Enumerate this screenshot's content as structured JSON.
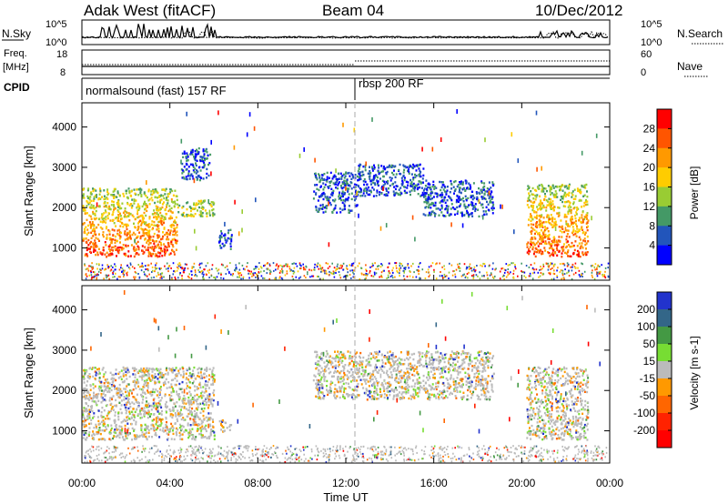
{
  "header": {
    "station": "Adak West (fitACF)",
    "beam": "Beam 04",
    "date": "10/Dec/2012"
  },
  "aux_panels": {
    "nsky_label": "N.Sky",
    "nsearch_label": "N.Search",
    "nsky_ticks": [
      "10^5",
      "10^0"
    ],
    "nsearch_ticks": [
      "10^5",
      "10^0"
    ],
    "freq_label": "Freq.",
    "freq_unit": "[MHz]",
    "freq_ticks": [
      "18",
      "8"
    ],
    "nave_label": "Nave",
    "nave_ticks": [
      "60",
      "0"
    ],
    "cpid_label": "CPID",
    "cpid_segments": [
      {
        "label": "normalsound (fast) 157 RF",
        "start_hour": 0
      },
      {
        "label": "rbsp 200 RF",
        "start_hour": 12
      }
    ]
  },
  "chart_data": [
    {
      "type": "heatmap",
      "panel": "power",
      "ylabel": "Slant Range [km]",
      "ylim": [
        200,
        4600
      ],
      "yticks": [
        1000,
        2000,
        3000,
        4000
      ],
      "xlim": [
        0,
        24
      ],
      "colorbar": {
        "label": "Power [dB]",
        "ticks": [
          "28",
          "24",
          "20",
          "16",
          "12",
          "8",
          "4"
        ],
        "colors": [
          "#ff0000",
          "#ff5500",
          "#ff9900",
          "#ffcc00",
          "#99cc33",
          "#449966",
          "#2255bb",
          "#0000ff"
        ]
      },
      "echo_regions": [
        {
          "start_hour": 0,
          "end_hour": 4.3,
          "range_min": 800,
          "range_max": 2500,
          "level": "high"
        },
        {
          "start_hour": 4.3,
          "end_hour": 6,
          "range_min": 1800,
          "range_max": 2200,
          "level": "mid"
        },
        {
          "start_hour": 4.5,
          "end_hour": 5.8,
          "range_min": 2700,
          "range_max": 3500,
          "level": "low"
        },
        {
          "start_hour": 6.2,
          "end_hour": 6.8,
          "range_min": 1000,
          "range_max": 1500,
          "level": "low"
        },
        {
          "start_hour": 10.5,
          "end_hour": 12.5,
          "range_min": 1900,
          "range_max": 2900,
          "level": "low"
        },
        {
          "start_hour": 12.5,
          "end_hour": 15.5,
          "range_min": 2300,
          "range_max": 3100,
          "level": "low"
        },
        {
          "start_hour": 15.5,
          "end_hour": 18.7,
          "range_min": 1800,
          "range_max": 2700,
          "level": "low"
        },
        {
          "start_hour": 20.2,
          "end_hour": 23,
          "range_min": 800,
          "range_max": 2600,
          "level": "high"
        }
      ]
    },
    {
      "type": "heatmap",
      "panel": "velocity",
      "ylabel": "Slant Range [km]",
      "xlabel": "Time UT",
      "ylim": [
        200,
        4600
      ],
      "yticks": [
        1000,
        2000,
        3000,
        4000
      ],
      "xlim": [
        0,
        24
      ],
      "xticks": [
        "00:00",
        "04:00",
        "08:00",
        "12:00",
        "16:00",
        "20:00",
        "00:00"
      ],
      "colorbar": {
        "label": "Velocity [m s-1]",
        "ticks": [
          "200",
          "100",
          "50",
          "15",
          "-15",
          "-50",
          "-100",
          "-200"
        ],
        "colors": [
          "#2233cc",
          "#336688",
          "#449944",
          "#77dd33",
          "#bbbbbb",
          "#ff9900",
          "#ff6600",
          "#ff2200",
          "#ff0000"
        ]
      },
      "echo_regions": [
        {
          "start_hour": 0,
          "end_hour": 6,
          "range_min": 800,
          "range_max": 2600
        },
        {
          "start_hour": 6.2,
          "end_hour": 6.8,
          "range_min": 1000,
          "range_max": 1300
        },
        {
          "start_hour": 10.5,
          "end_hour": 18.7,
          "range_min": 1800,
          "range_max": 3000
        },
        {
          "start_hour": 20.2,
          "end_hour": 23,
          "range_min": 800,
          "range_max": 2600
        }
      ]
    }
  ]
}
